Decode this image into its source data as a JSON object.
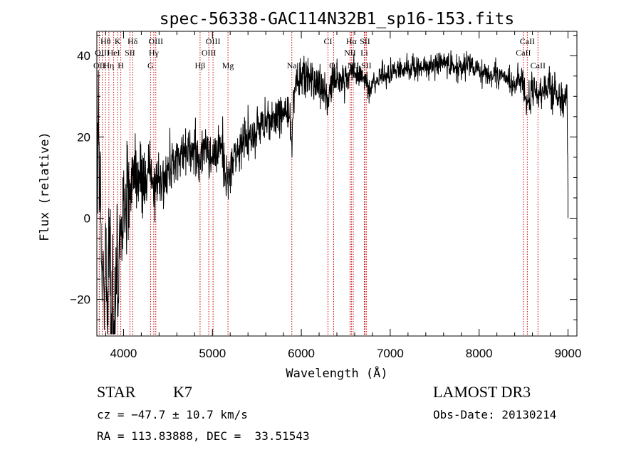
{
  "chart_data": {
    "type": "line",
    "title": "spec-56338-GAC114N32B1_sp16-153.fits",
    "xlabel": "Wavelength (Å)",
    "ylabel": "Flux (relative)",
    "xlim": [
      3700,
      9100
    ],
    "ylim": [
      -29,
      46
    ],
    "xticks": [
      4000,
      5000,
      6000,
      7000,
      8000,
      9000
    ],
    "xtick_labels": [
      "4000",
      "5000",
      "6000",
      "7000",
      "8000",
      "9000"
    ],
    "yticks": [
      -20,
      0,
      20,
      40
    ],
    "ytick_labels": [
      "−20",
      "0",
      "20",
      "40"
    ],
    "series": [
      {
        "name": "flux",
        "anchors": [
          [
            3705,
            20
          ],
          [
            3715,
            30
          ],
          [
            3725,
            15
          ],
          [
            3740,
            5
          ],
          [
            3760,
            -8
          ],
          [
            3780,
            -20
          ],
          [
            3800,
            -10
          ],
          [
            3820,
            -22
          ],
          [
            3840,
            -5
          ],
          [
            3860,
            -24
          ],
          [
            3880,
            -15
          ],
          [
            3900,
            -27
          ],
          [
            3920,
            -10
          ],
          [
            3940,
            -20
          ],
          [
            3960,
            -2
          ],
          [
            3980,
            -8
          ],
          [
            4000,
            8
          ],
          [
            4020,
            -3
          ],
          [
            4050,
            10
          ],
          [
            4080,
            6
          ],
          [
            4110,
            14
          ],
          [
            4150,
            10
          ],
          [
            4200,
            12
          ],
          [
            4250,
            8
          ],
          [
            4300,
            13
          ],
          [
            4350,
            5
          ],
          [
            4380,
            12
          ],
          [
            4420,
            8
          ],
          [
            4500,
            12
          ],
          [
            4600,
            15
          ],
          [
            4700,
            17
          ],
          [
            4800,
            18
          ],
          [
            4860,
            13
          ],
          [
            4900,
            17
          ],
          [
            5000,
            15
          ],
          [
            5100,
            18
          ],
          [
            5180,
            9
          ],
          [
            5250,
            16
          ],
          [
            5400,
            20
          ],
          [
            5500,
            21
          ],
          [
            5600,
            24
          ],
          [
            5700,
            25
          ],
          [
            5800,
            26
          ],
          [
            5880,
            25
          ],
          [
            5895,
            13
          ],
          [
            5910,
            30
          ],
          [
            5950,
            33
          ],
          [
            6000,
            35
          ],
          [
            6100,
            34
          ],
          [
            6200,
            33
          ],
          [
            6280,
            30
          ],
          [
            6300,
            28
          ],
          [
            6350,
            33
          ],
          [
            6450,
            34
          ],
          [
            6500,
            34
          ],
          [
            6563,
            37
          ],
          [
            6600,
            36
          ],
          [
            6700,
            34
          ],
          [
            6750,
            31
          ],
          [
            6800,
            33
          ],
          [
            6900,
            35
          ],
          [
            7000,
            36
          ],
          [
            7200,
            37
          ],
          [
            7400,
            37
          ],
          [
            7600,
            38
          ],
          [
            7800,
            37
          ],
          [
            7900,
            38
          ],
          [
            8000,
            36
          ],
          [
            8100,
            35
          ],
          [
            8200,
            35
          ],
          [
            8300,
            35
          ],
          [
            8400,
            33
          ],
          [
            8500,
            33
          ],
          [
            8542,
            28
          ],
          [
            8600,
            32
          ],
          [
            8662,
            30
          ],
          [
            8700,
            32
          ],
          [
            8800,
            32
          ],
          [
            8900,
            31
          ],
          [
            8960,
            29
          ],
          [
            8990,
            28
          ],
          [
            9000,
            8
          ]
        ],
        "noise": [
          [
            3700,
            10
          ],
          [
            3980,
            6
          ],
          [
            4300,
            3.5
          ],
          [
            5000,
            3
          ],
          [
            5900,
            2.5
          ],
          [
            6300,
            2.5
          ],
          [
            6600,
            1.8
          ],
          [
            7000,
            1.5
          ],
          [
            8000,
            1.5
          ],
          [
            8500,
            2.2
          ],
          [
            9000,
            2.5
          ]
        ]
      }
    ],
    "spectral_lines": [
      {
        "label": "Hθ",
        "wavelength": 3798,
        "row": 0
      },
      {
        "label": "K",
        "wavelength": 3934,
        "row": 0
      },
      {
        "label": "Hδ",
        "wavelength": 4102,
        "row": 0
      },
      {
        "label": "OIII",
        "wavelength": 4363,
        "row": 0
      },
      {
        "label": "OIII",
        "wavelength": 5007,
        "row": 0
      },
      {
        "label": "CI",
        "wavelength": 6300,
        "row": 0
      },
      {
        "label": "Hα",
        "wavelength": 6563,
        "row": 0
      },
      {
        "label": "SII",
        "wavelength": 6716,
        "row": 0
      },
      {
        "label": "CaII",
        "wavelength": 8542,
        "row": 0
      },
      {
        "label": "OIII",
        "wavelength": 3760,
        "row": 1
      },
      {
        "label": "HeI",
        "wavelength": 3889,
        "row": 1
      },
      {
        "label": "SII",
        "wavelength": 4072,
        "row": 1
      },
      {
        "label": "Hγ",
        "wavelength": 4340,
        "row": 1
      },
      {
        "label": "OIII",
        "wavelength": 4959,
        "row": 1
      },
      {
        "label": "NII",
        "wavelength": 6548,
        "row": 1
      },
      {
        "label": "Li",
        "wavelength": 6708,
        "row": 1
      },
      {
        "label": "CaII",
        "wavelength": 8498,
        "row": 1
      },
      {
        "label": "OII",
        "wavelength": 3727,
        "row": 2
      },
      {
        "label": "Hη",
        "wavelength": 3835,
        "row": 2
      },
      {
        "label": "H",
        "wavelength": 3969,
        "row": 2
      },
      {
        "label": "G",
        "wavelength": 4304,
        "row": 2
      },
      {
        "label": "Hβ",
        "wavelength": 4861,
        "row": 2
      },
      {
        "label": "Mg",
        "wavelength": 5175,
        "row": 2
      },
      {
        "label": "Na",
        "wavelength": 5893,
        "row": 2
      },
      {
        "label": "OI",
        "wavelength": 6364,
        "row": 2
      },
      {
        "label": "NII",
        "wavelength": 6584,
        "row": 2
      },
      {
        "label": "SII",
        "wavelength": 6731,
        "row": 2
      },
      {
        "label": "CaII",
        "wavelength": 8662,
        "row": 2
      }
    ],
    "grid": false,
    "line_color": "#000000",
    "marker_color": "#cc0000"
  },
  "info": {
    "object_class": "STAR",
    "subclass": "K7",
    "survey": "LAMOST DR3",
    "redshift": "cz = −47.7 ± 10.7 km/s",
    "obs_date": "Obs-Date: 20130214",
    "coords": "RA = 113.83888, DEC =  33.51543"
  }
}
